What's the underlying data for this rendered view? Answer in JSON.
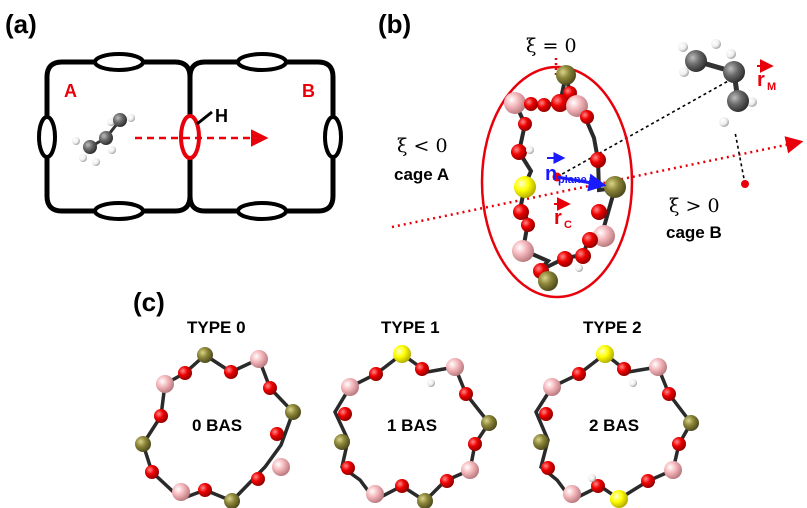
{
  "panels": {
    "a": {
      "label": "(a)",
      "cage_a": "A",
      "cage_b": "B",
      "h_label": "H"
    },
    "b": {
      "label": "(b)",
      "xi_zero": "ξ = 0",
      "xi_neg": "ξ < 0",
      "cage_a_text": "cage A",
      "xi_pos": "ξ > 0",
      "cage_b_text": "cage B",
      "n_vec": "n",
      "n_sub": "plane",
      "rc_vec": "r",
      "rc_sub": "C",
      "rm_vec": "r",
      "rm_sub": "M"
    },
    "c": {
      "label": "(c)",
      "rings": [
        {
          "title": "TYPE 0",
          "center_text": "0 BAS"
        },
        {
          "title": "TYPE 1",
          "center_text": "1 BAS"
        },
        {
          "title": "TYPE 2",
          "center_text": "2 BAS"
        }
      ]
    }
  },
  "colors": {
    "accent_red": "#e8000b",
    "oxygen": "#ee0000",
    "silicon": "#8b8538",
    "aluminum": "#ffff00",
    "pink_atom": "#f4b7bb",
    "carbon": "#6b6b6b",
    "hydrogen": "#f2f2f2",
    "blue_vector": "#1a1aff"
  }
}
